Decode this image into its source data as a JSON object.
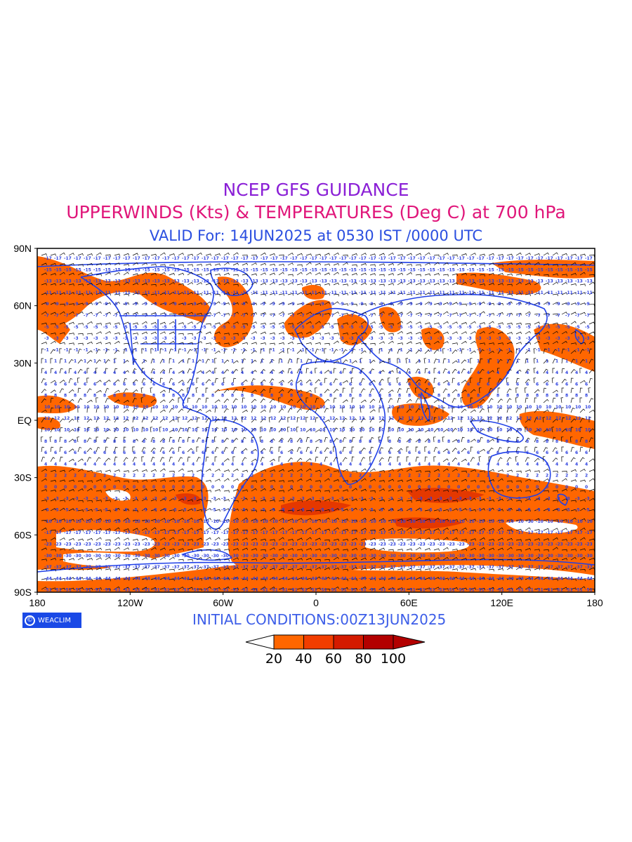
{
  "titles": {
    "line1": "NCEP GFS GUIDANCE",
    "line2": "UPPERWINDS (Kts) & TEMPERATURES (Deg C) at 700 hPa",
    "line3": "VALID For: 14JUN2025 at 0530 IST /0000 UTC"
  },
  "colors": {
    "line1": "#8a1fd6",
    "line2": "#e0167a",
    "line3": "#2b4fe0",
    "init": "#3d5ee8",
    "coast": "#2040e8",
    "contour_labels": "#2b3fe0",
    "wind_barbs": "#000000",
    "shade": "#ff6600"
  },
  "map": {
    "lat_labels": [
      "90N",
      "60N",
      "30N",
      "EQ",
      "30S",
      "60S",
      "90S"
    ],
    "lon_labels": [
      "180",
      "120W",
      "60W",
      "0",
      "60E",
      "120E",
      "180"
    ]
  },
  "footer": {
    "logo_icon": "©",
    "logo_text": "WEACLIM",
    "initial": "INITIAL CONDITIONS:00Z13JUN2025"
  },
  "legend": {
    "labels": [
      "20",
      "40",
      "60",
      "80",
      "100"
    ],
    "colors": [
      "#ffffff",
      "#ff6600",
      "#f23d00",
      "#d41a00",
      "#b30000",
      "#b30000"
    ]
  }
}
